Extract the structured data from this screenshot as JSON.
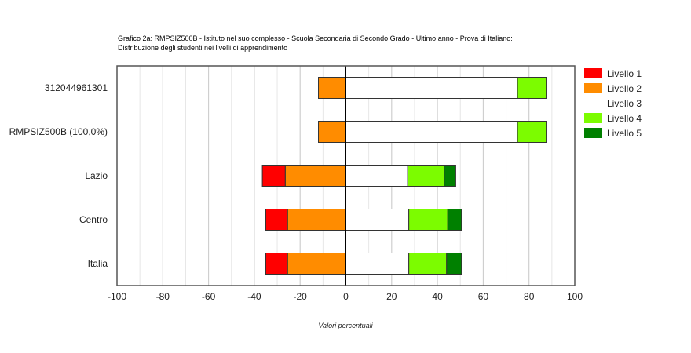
{
  "chart_data": {
    "type": "bar",
    "orientation": "horizontal",
    "stacked": "diverging",
    "title": "Grafico 2a: RMPSIZ500B - Istituto nel suo complesso - Scuola Secondaria di Secondo Grado - Ultimo anno - Prova di Italiano:",
    "subtitle": "Distribuzione degli studenti nei livelli di apprendimento",
    "xlabel": "Valori percentuali",
    "ylabel": "",
    "xlim": [
      -100,
      100
    ],
    "xticks": [
      "-100",
      "-80",
      "-60",
      "-40",
      "-20",
      "0",
      "20",
      "40",
      "60",
      "80",
      "100"
    ],
    "categories": [
      "312044961301",
      "RMPSIZ500B (100,0%)",
      "Lazio",
      "Centro",
      "Italia"
    ],
    "series": [
      {
        "name": "Livello 1",
        "color": "#ff0000",
        "side": "negative",
        "values": [
          0,
          0,
          10,
          9.5,
          9.5
        ]
      },
      {
        "name": "Livello 2",
        "color": "#ff8c00",
        "side": "negative",
        "values": [
          12,
          12,
          26.5,
          25.5,
          25.5
        ]
      },
      {
        "name": "Livello 3",
        "color": "#ffffff",
        "side": "positive",
        "values": [
          75,
          75,
          27,
          27.5,
          27.5
        ]
      },
      {
        "name": "Livello 4",
        "color": "#7cfc00",
        "side": "positive",
        "values": [
          12.5,
          12.5,
          16,
          17,
          16.5
        ]
      },
      {
        "name": "Livello 5",
        "color": "#008000",
        "side": "positive",
        "values": [
          0,
          0,
          5,
          6,
          6.5
        ]
      }
    ],
    "grid": true,
    "legend_position": "right"
  }
}
